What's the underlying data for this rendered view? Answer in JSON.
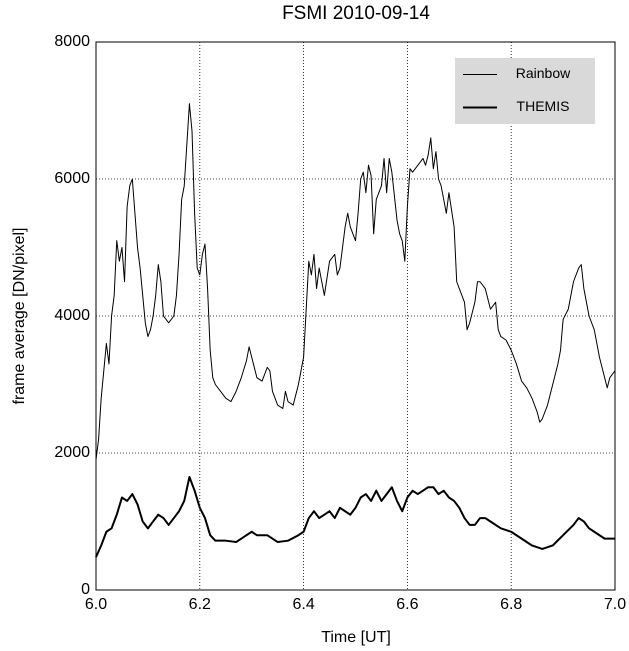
{
  "chart_data": {
    "type": "line",
    "title": "FSMI 2010-09-14",
    "x_label": "Time [UT]",
    "y_label": "frame average [DN/pixel]",
    "xlim": [
      6.0,
      7.0
    ],
    "xticks": [
      {
        "value": 6.0,
        "label": "6.0"
      },
      6.2,
      6.4,
      6.6,
      6.8,
      {
        "value": 7.0,
        "label": "7.0"
      }
    ],
    "ylim": [
      0,
      8000
    ],
    "yticks": [
      0,
      2000,
      4000,
      6000,
      8000
    ],
    "grid": true,
    "legend": "upper right",
    "series": [
      {
        "name": "Rainbow",
        "color": "#000000",
        "width": 1,
        "x": [
          6.0,
          6.005,
          6.01,
          6.015,
          6.02,
          6.025,
          6.03,
          6.035,
          6.04,
          6.045,
          6.05,
          6.055,
          6.06,
          6.065,
          6.07,
          6.075,
          6.08,
          6.085,
          6.09,
          6.095,
          6.1,
          6.105,
          6.11,
          6.115,
          6.12,
          6.125,
          6.13,
          6.14,
          6.15,
          6.155,
          6.16,
          6.165,
          6.17,
          6.175,
          6.18,
          6.185,
          6.19,
          6.195,
          6.2,
          6.205,
          6.21,
          6.215,
          6.22,
          6.225,
          6.23,
          6.24,
          6.25,
          6.26,
          6.27,
          6.28,
          6.29,
          6.295,
          6.3,
          6.31,
          6.32,
          6.33,
          6.335,
          6.34,
          6.35,
          6.36,
          6.365,
          6.37,
          6.38,
          6.39,
          6.4,
          6.405,
          6.41,
          6.415,
          6.42,
          6.425,
          6.43,
          6.44,
          6.45,
          6.46,
          6.465,
          6.47,
          6.48,
          6.485,
          6.49,
          6.5,
          6.505,
          6.51,
          6.515,
          6.52,
          6.525,
          6.53,
          6.535,
          6.54,
          6.55,
          6.555,
          6.56,
          6.565,
          6.57,
          6.58,
          6.585,
          6.59,
          6.595,
          6.6,
          6.605,
          6.61,
          6.62,
          6.63,
          6.635,
          6.64,
          6.645,
          6.65,
          6.655,
          6.66,
          6.665,
          6.67,
          6.675,
          6.68,
          6.69,
          6.695,
          6.7,
          6.71,
          6.715,
          6.72,
          6.73,
          6.735,
          6.74,
          6.75,
          6.76,
          6.77,
          6.775,
          6.78,
          6.79,
          6.8,
          6.81,
          6.82,
          6.83,
          6.84,
          6.85,
          6.855,
          6.86,
          6.87,
          6.88,
          6.89,
          6.895,
          6.9,
          6.91,
          6.92,
          6.93,
          6.935,
          6.94,
          6.95,
          6.96,
          6.97,
          6.98,
          6.985,
          6.99,
          7.0
        ],
        "values": [
          1900,
          2200,
          2800,
          3200,
          3600,
          3300,
          4000,
          4300,
          5100,
          4800,
          5000,
          4500,
          5600,
          5900,
          6000,
          5500,
          5000,
          4700,
          4300,
          3900,
          3700,
          3800,
          4000,
          4300,
          4750,
          4500,
          4000,
          3900,
          4000,
          4300,
          4900,
          5700,
          5900,
          6500,
          7100,
          6700,
          5500,
          4700,
          4600,
          4900,
          5050,
          4400,
          3500,
          3100,
          3000,
          2900,
          2800,
          2750,
          2900,
          3100,
          3350,
          3550,
          3400,
          3100,
          3050,
          3250,
          3200,
          2900,
          2700,
          2650,
          2900,
          2750,
          2700,
          3000,
          3400,
          4100,
          4800,
          4600,
          4900,
          4400,
          4700,
          4300,
          4800,
          4900,
          4600,
          4700,
          5300,
          5500,
          5300,
          5100,
          5500,
          6000,
          6100,
          5800,
          6200,
          6050,
          5200,
          5700,
          5900,
          6300,
          5800,
          6300,
          6100,
          5400,
          5200,
          5100,
          4800,
          5600,
          6150,
          6100,
          6200,
          6300,
          6200,
          6350,
          6600,
          6150,
          6400,
          6000,
          5900,
          5700,
          5500,
          5800,
          5300,
          4500,
          4400,
          4200,
          3800,
          3900,
          4200,
          4500,
          4500,
          4400,
          4100,
          4200,
          3800,
          3700,
          3650,
          3500,
          3300,
          3050,
          2950,
          2800,
          2600,
          2450,
          2500,
          2700,
          3000,
          3300,
          3500,
          3950,
          4100,
          4500,
          4700,
          4750,
          4400,
          4000,
          3800,
          3400,
          3100,
          2950,
          3100,
          3200
        ]
      },
      {
        "name": "THEMIS",
        "color": "#000000",
        "width": 2,
        "x": [
          6.0,
          6.01,
          6.02,
          6.03,
          6.04,
          6.05,
          6.06,
          6.07,
          6.08,
          6.09,
          6.1,
          6.11,
          6.12,
          6.13,
          6.14,
          6.15,
          6.16,
          6.17,
          6.18,
          6.19,
          6.2,
          6.21,
          6.22,
          6.23,
          6.25,
          6.27,
          6.29,
          6.3,
          6.31,
          6.33,
          6.35,
          6.37,
          6.39,
          6.4,
          6.41,
          6.42,
          6.43,
          6.44,
          6.45,
          6.46,
          6.47,
          6.48,
          6.49,
          6.5,
          6.51,
          6.52,
          6.53,
          6.54,
          6.55,
          6.56,
          6.57,
          6.58,
          6.59,
          6.6,
          6.61,
          6.62,
          6.63,
          6.64,
          6.65,
          6.66,
          6.67,
          6.68,
          6.69,
          6.7,
          6.71,
          6.72,
          6.73,
          6.74,
          6.75,
          6.76,
          6.78,
          6.8,
          6.82,
          6.84,
          6.86,
          6.88,
          6.9,
          6.92,
          6.93,
          6.94,
          6.95,
          6.96,
          6.98,
          7.0
        ],
        "values": [
          480,
          650,
          850,
          900,
          1100,
          1350,
          1300,
          1400,
          1250,
          1000,
          900,
          1000,
          1100,
          1050,
          950,
          1050,
          1150,
          1300,
          1650,
          1450,
          1200,
          1050,
          800,
          720,
          720,
          700,
          800,
          850,
          800,
          800,
          700,
          720,
          800,
          850,
          1050,
          1150,
          1050,
          1100,
          1150,
          1050,
          1200,
          1150,
          1100,
          1200,
          1350,
          1400,
          1300,
          1450,
          1300,
          1400,
          1500,
          1300,
          1150,
          1350,
          1450,
          1400,
          1450,
          1500,
          1500,
          1400,
          1450,
          1350,
          1300,
          1200,
          1050,
          950,
          950,
          1050,
          1050,
          1000,
          900,
          850,
          750,
          650,
          600,
          650,
          800,
          950,
          1050,
          1000,
          900,
          850,
          750,
          750
        ]
      }
    ]
  }
}
